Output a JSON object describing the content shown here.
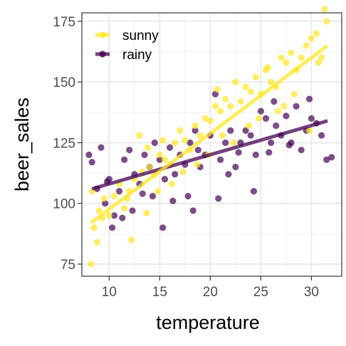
{
  "chart_data": {
    "type": "scatter",
    "title": "",
    "xlabel": "temperature",
    "ylabel": "beer_sales",
    "xlim": [
      7.3,
      33.0
    ],
    "ylim": [
      70,
      178.5
    ],
    "x_ticks": [
      10,
      15,
      20,
      25,
      30
    ],
    "y_ticks": [
      75,
      100,
      125,
      150,
      175
    ],
    "grid": true,
    "legend_position": "top-left",
    "series": [
      {
        "name": "sunny",
        "color": "#fde725",
        "trend": {
          "x": [
            8.2,
            31.6
          ],
          "y": [
            92,
            165
          ]
        },
        "points": [
          [
            8.2,
            75
          ],
          [
            8.5,
            90
          ],
          [
            8.8,
            84
          ],
          [
            8.3,
            105
          ],
          [
            9.0,
            97
          ],
          [
            9.5,
            102
          ],
          [
            10.0,
            95
          ],
          [
            10.5,
            103
          ],
          [
            11.0,
            108
          ],
          [
            11.5,
            98
          ],
          [
            12.0,
            105
          ],
          [
            12.5,
            110
          ],
          [
            13.0,
            128
          ],
          [
            13.3,
            113
          ],
          [
            13.7,
            96
          ],
          [
            14.0,
            115
          ],
          [
            14.5,
            112
          ],
          [
            15.0,
            120
          ],
          [
            15.5,
            118
          ],
          [
            16.0,
            116
          ],
          [
            16.5,
            125
          ],
          [
            17.0,
            130
          ],
          [
            17.5,
            126
          ],
          [
            18.0,
            122
          ],
          [
            18.5,
            132
          ],
          [
            19.0,
            128
          ],
          [
            19.5,
            135
          ],
          [
            20.0,
            134
          ],
          [
            20.5,
            140
          ],
          [
            21.0,
            138
          ],
          [
            21.5,
            143
          ],
          [
            22.0,
            140
          ],
          [
            22.5,
            150
          ],
          [
            23.0,
            142
          ],
          [
            23.5,
            148
          ],
          [
            24.0,
            146
          ],
          [
            24.5,
            152
          ],
          [
            25.0,
            145
          ],
          [
            25.5,
            155
          ],
          [
            26.0,
            150
          ],
          [
            26.5,
            148
          ],
          [
            27.0,
            160
          ],
          [
            27.5,
            158
          ],
          [
            28.0,
            162
          ],
          [
            28.5,
            155
          ],
          [
            29.0,
            160
          ],
          [
            29.5,
            165
          ],
          [
            30.0,
            168
          ],
          [
            30.5,
            170
          ],
          [
            31.0,
            160
          ],
          [
            31.3,
            180
          ],
          [
            31.5,
            175
          ],
          [
            12.2,
            85
          ],
          [
            14.8,
            105
          ],
          [
            17.3,
            113
          ],
          [
            19.8,
            120
          ],
          [
            22.3,
            125
          ],
          [
            24.8,
            135
          ],
          [
            27.3,
            140
          ],
          [
            29.8,
            130
          ],
          [
            26.7,
            138
          ],
          [
            28.3,
            145
          ],
          [
            23.8,
            132
          ],
          [
            21.2,
            128
          ],
          [
            18.7,
            116
          ],
          [
            16.2,
            108
          ],
          [
            11.8,
            102
          ],
          [
            9.3,
            94
          ],
          [
            13.8,
            123
          ],
          [
            15.3,
            126
          ],
          [
            20.7,
            147
          ],
          [
            25.7,
            156
          ],
          [
            30.7,
            158
          ]
        ]
      },
      {
        "name": "rainy",
        "color": "#440154",
        "trend": {
          "x": [
            8.3,
            31.6
          ],
          "y": [
            106,
            134
          ]
        },
        "points": [
          [
            8.0,
            120
          ],
          [
            8.3,
            117
          ],
          [
            8.8,
            106
          ],
          [
            9.2,
            123
          ],
          [
            9.6,
            100
          ],
          [
            10.0,
            110
          ],
          [
            10.5,
            95
          ],
          [
            11.0,
            105
          ],
          [
            11.5,
            118
          ],
          [
            12.0,
            122
          ],
          [
            12.5,
            112
          ],
          [
            13.0,
            108
          ],
          [
            13.5,
            120
          ],
          [
            14.0,
            115
          ],
          [
            14.5,
            125
          ],
          [
            15.0,
            118
          ],
          [
            15.5,
            110
          ],
          [
            16.0,
            123
          ],
          [
            16.5,
            112
          ],
          [
            17.0,
            120
          ],
          [
            17.5,
            116
          ],
          [
            18.0,
            125
          ],
          [
            18.5,
            130
          ],
          [
            19.0,
            115
          ],
          [
            19.5,
            120
          ],
          [
            20.0,
            128
          ],
          [
            20.5,
            145
          ],
          [
            21.0,
            118
          ],
          [
            21.5,
            125
          ],
          [
            22.0,
            130
          ],
          [
            22.5,
            115
          ],
          [
            23.0,
            125
          ],
          [
            23.5,
            130
          ],
          [
            24.0,
            128
          ],
          [
            24.5,
            120
          ],
          [
            25.0,
            138
          ],
          [
            25.5,
            135
          ],
          [
            26.0,
            125
          ],
          [
            26.5,
            132
          ],
          [
            27.0,
            128
          ],
          [
            27.5,
            136
          ],
          [
            28.0,
            125
          ],
          [
            28.5,
            140
          ],
          [
            29.0,
            122
          ],
          [
            29.5,
            130
          ],
          [
            30.0,
            135
          ],
          [
            30.5,
            133
          ],
          [
            31.0,
            128
          ],
          [
            31.5,
            118
          ],
          [
            32.0,
            119
          ],
          [
            10.3,
            90
          ],
          [
            11.3,
            94
          ],
          [
            15.3,
            90
          ],
          [
            18.3,
            97
          ],
          [
            20.8,
            102
          ],
          [
            24.3,
            105
          ],
          [
            16.3,
            101
          ],
          [
            13.3,
            104
          ],
          [
            22.8,
            121
          ],
          [
            27.8,
            124
          ],
          [
            29.8,
            143
          ],
          [
            25.8,
            121
          ],
          [
            18.8,
            122
          ],
          [
            14.3,
            103
          ],
          [
            12.3,
            97
          ],
          [
            9.8,
            109
          ],
          [
            17.8,
            103
          ],
          [
            21.8,
            112
          ],
          [
            26.3,
            142
          ]
        ]
      }
    ]
  }
}
